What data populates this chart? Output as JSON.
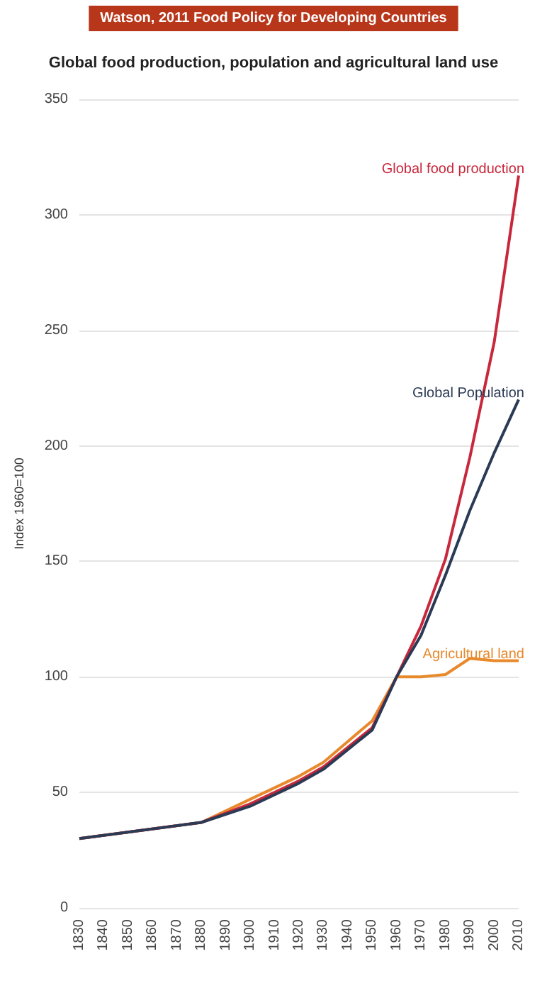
{
  "chart_data": {
    "type": "line",
    "title": "Global food production, population and agricultural land use",
    "annotations": [
      "Watson, 2011 Food Policy for Developing Countries"
    ],
    "ylabel": "Index 1960=100",
    "x": [
      1830,
      1880,
      1900,
      1920,
      1930,
      1950,
      1960,
      1970,
      1980,
      1990,
      2000,
      2010
    ],
    "xlim": [
      1830,
      2010
    ],
    "xticks": [
      1830,
      1840,
      1850,
      1860,
      1870,
      1880,
      1890,
      1900,
      1910,
      1920,
      1930,
      1940,
      1950,
      1960,
      1970,
      1980,
      1990,
      2000,
      2010
    ],
    "ylim": [
      0,
      350
    ],
    "yticks": [
      0,
      50,
      100,
      150,
      200,
      250,
      300,
      350
    ],
    "grid": "y",
    "marker": "none",
    "line_style": "solid",
    "legend": false,
    "series": [
      {
        "name": "Agricultural land",
        "color": "#e8892c",
        "values": [
          30,
          37,
          47,
          57,
          63,
          81,
          100,
          100,
          101,
          108,
          107,
          107
        ]
      },
      {
        "name": "Global food production",
        "color": "#c8283c",
        "values": [
          30,
          37,
          45,
          55,
          61,
          78,
          100,
          122,
          151,
          195,
          245,
          317
        ]
      },
      {
        "name": "Global Population",
        "color": "#2b3a55",
        "values": [
          30,
          37,
          44,
          54,
          60,
          77,
          100,
          118,
          144,
          172,
          197,
          220
        ]
      }
    ]
  }
}
